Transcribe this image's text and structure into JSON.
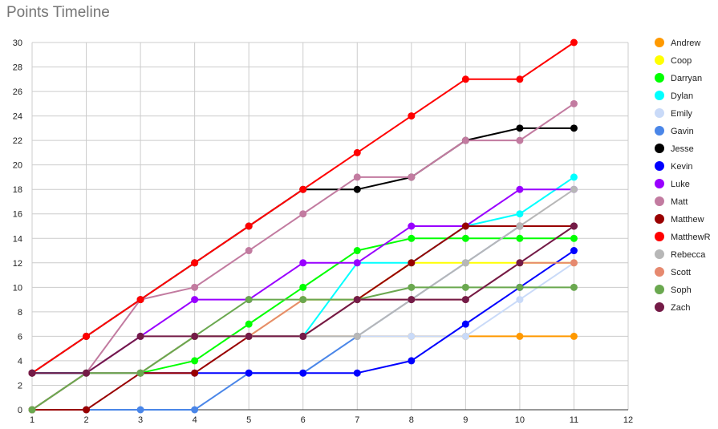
{
  "chart_data": {
    "type": "line",
    "title": "Points Timeline",
    "xlabel": "",
    "ylabel": "",
    "xlim": [
      1,
      12
    ],
    "ylim": [
      0,
      30
    ],
    "x_ticks": [
      1,
      2,
      3,
      4,
      5,
      6,
      7,
      8,
      9,
      10,
      11,
      12
    ],
    "y_ticks": [
      0,
      2,
      4,
      6,
      8,
      10,
      12,
      14,
      16,
      18,
      20,
      22,
      24,
      26,
      28,
      30
    ],
    "grid": true,
    "legend_position": "right",
    "x": [
      1,
      2,
      3,
      4,
      5,
      6,
      7,
      8,
      9,
      10,
      11
    ],
    "series": [
      {
        "name": "Andrew",
        "color": "#ff9900",
        "values": [
          0,
          3,
          3,
          6,
          6,
          6,
          6,
          6,
          6,
          6,
          6
        ]
      },
      {
        "name": "Coop",
        "color": "#ffff00",
        "values": [
          0,
          3,
          3,
          6,
          6,
          9,
          9,
          12,
          12,
          12,
          12
        ]
      },
      {
        "name": "Darryan",
        "color": "#00ff00",
        "values": [
          3,
          3,
          3,
          4,
          7,
          10,
          13,
          14,
          14,
          14,
          14
        ]
      },
      {
        "name": "Dylan",
        "color": "#00ffff",
        "values": [
          0,
          3,
          3,
          6,
          6,
          6,
          12,
          12,
          15,
          16,
          19
        ]
      },
      {
        "name": "Emily",
        "color": "#c9daf8",
        "values": [
          0,
          3,
          3,
          6,
          6,
          6,
          6,
          6,
          6,
          9,
          12
        ]
      },
      {
        "name": "Gavin",
        "color": "#4a86e8",
        "values": [
          0,
          0,
          0,
          0,
          3,
          3,
          6,
          9,
          12,
          15,
          15
        ]
      },
      {
        "name": "Jesse",
        "color": "#000000",
        "values": [
          3,
          6,
          9,
          12,
          15,
          18,
          18,
          19,
          22,
          23,
          23
        ]
      },
      {
        "name": "Kevin",
        "color": "#0000ff",
        "values": [
          3,
          3,
          3,
          3,
          3,
          3,
          3,
          4,
          7,
          10,
          13
        ]
      },
      {
        "name": "Luke",
        "color": "#9900ff",
        "values": [
          0,
          3,
          6,
          9,
          9,
          12,
          12,
          15,
          15,
          18,
          18
        ]
      },
      {
        "name": "Matt",
        "color": "#c27ba0",
        "values": [
          0,
          3,
          9,
          10,
          13,
          16,
          19,
          19,
          22,
          22,
          25
        ]
      },
      {
        "name": "Matthew",
        "color": "#990000",
        "values": [
          0,
          0,
          3,
          3,
          6,
          6,
          9,
          12,
          15,
          15,
          15
        ]
      },
      {
        "name": "MatthewR",
        "color": "#ff0000",
        "values": [
          3,
          6,
          9,
          12,
          15,
          18,
          21,
          24,
          27,
          27,
          30
        ]
      },
      {
        "name": "Rebecca",
        "color": "#b7b7b7",
        "values": [
          0,
          3,
          3,
          6,
          6,
          6,
          6,
          9,
          12,
          15,
          18
        ]
      },
      {
        "name": "Scott",
        "color": "#e6896f",
        "values": [
          0,
          3,
          3,
          6,
          6,
          9,
          9,
          9,
          9,
          12,
          12
        ]
      },
      {
        "name": "Soph",
        "color": "#6aa84f",
        "values": [
          0,
          3,
          3,
          6,
          9,
          9,
          9,
          10,
          10,
          10,
          10
        ]
      },
      {
        "name": "Zach",
        "color": "#741b47",
        "values": [
          3,
          3,
          6,
          6,
          6,
          6,
          9,
          9,
          9,
          12,
          15
        ]
      }
    ]
  }
}
